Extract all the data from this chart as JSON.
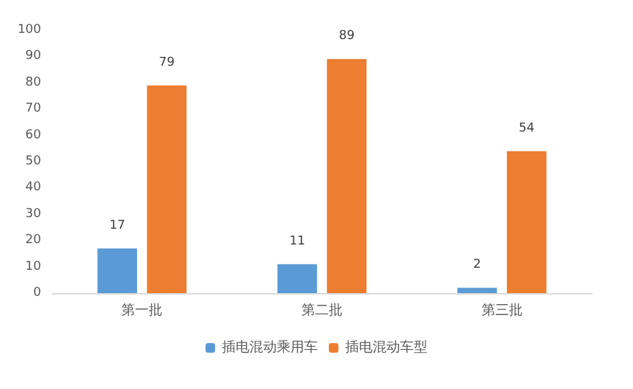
{
  "chart_data": {
    "type": "bar",
    "categories": [
      "第一批",
      "第二批",
      "第三批"
    ],
    "series": [
      {
        "name": "插电混动乘用车",
        "color": "#5b9bd5",
        "values": [
          17,
          11,
          2
        ]
      },
      {
        "name": "插电混动车型",
        "color": "#ed7d31",
        "values": [
          79,
          89,
          54
        ]
      }
    ],
    "ylim": [
      0,
      100
    ],
    "yticks": [
      0,
      10,
      20,
      30,
      40,
      50,
      60,
      70,
      80,
      90,
      100
    ],
    "grid": false,
    "legend": "bottom",
    "data_labels": true
  }
}
